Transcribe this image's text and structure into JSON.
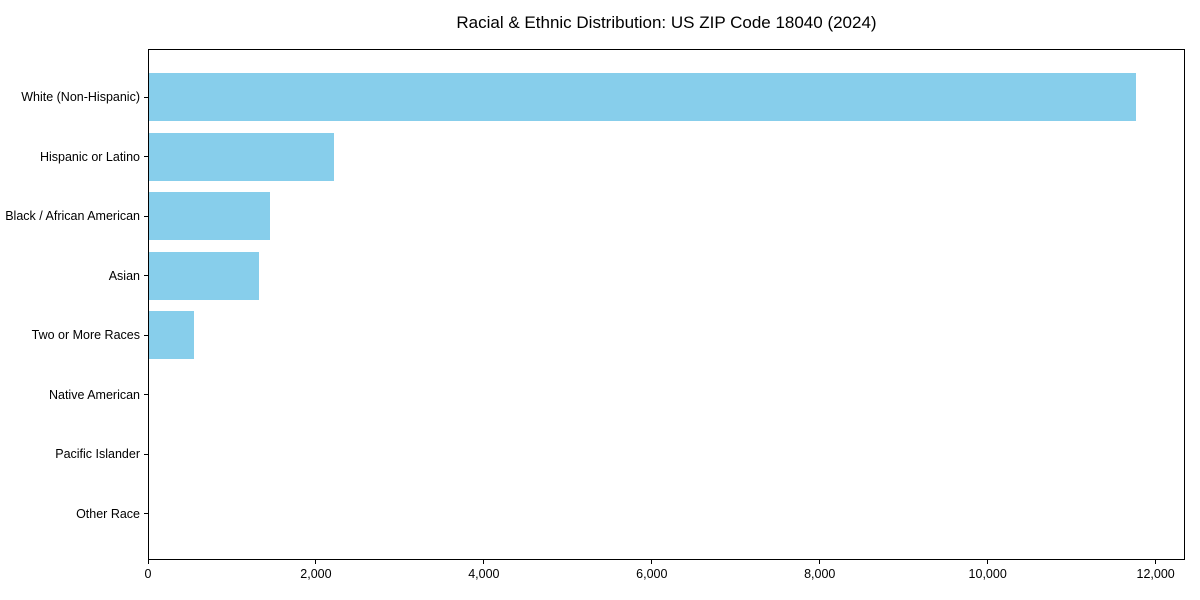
{
  "chart_data": {
    "type": "bar",
    "orientation": "horizontal",
    "title": "Racial & Ethnic Distribution: US ZIP Code 18040 (2024)",
    "categories": [
      "White (Non-Hispanic)",
      "Hispanic or Latino",
      "Black / African American",
      "Asian",
      "Two or More Races",
      "Native American",
      "Pacific Islander",
      "Other Race"
    ],
    "values": [
      11760,
      2200,
      1440,
      1310,
      530,
      0,
      0,
      0
    ],
    "xlabel": "",
    "ylabel": "",
    "xlim": [
      0,
      12350
    ],
    "x_ticks": [
      0,
      2000,
      4000,
      6000,
      8000,
      10000,
      12000
    ],
    "x_tick_labels": [
      "0",
      "2,000",
      "4,000",
      "6,000",
      "8,000",
      "10,000",
      "12,000"
    ],
    "bar_color": "#87CEEB",
    "axis_color": "#000000",
    "text_color": "#000000",
    "background_color": "#ffffff",
    "grid": false,
    "legend": null
  }
}
